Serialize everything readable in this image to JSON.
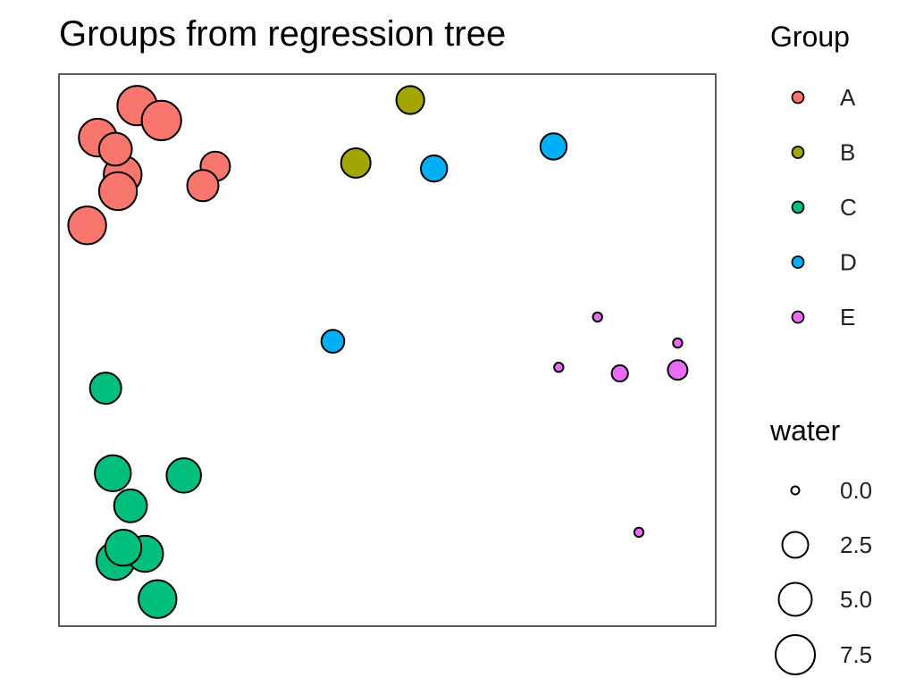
{
  "chart_data": {
    "type": "scatter",
    "title": "Groups from regression tree",
    "xlabel": "",
    "ylabel": "",
    "xlim": [
      0,
      100
    ],
    "ylim": [
      0,
      100
    ],
    "grid": false,
    "axes_ticks": false,
    "legend_position": "right",
    "color_legend": {
      "title": "Group",
      "entries": [
        {
          "label": "A",
          "color": "#F8766D"
        },
        {
          "label": "B",
          "color": "#A3A500"
        },
        {
          "label": "C",
          "color": "#00BF7D"
        },
        {
          "label": "D",
          "color": "#00B0F6"
        },
        {
          "label": "E",
          "color": "#E76BF3"
        }
      ]
    },
    "size_legend": {
      "title": "water",
      "values": [
        0.0,
        2.5,
        5.0,
        7.5
      ],
      "labels": [
        "0.0",
        "2.5",
        "5.0",
        "7.5"
      ]
    },
    "series": [
      {
        "group": "A",
        "points": [
          {
            "x": 11.9,
            "y": 94.3,
            "water": 9.5
          },
          {
            "x": 15.6,
            "y": 91.6,
            "water": 9.5
          },
          {
            "x": 5.9,
            "y": 88.5,
            "water": 9.0
          },
          {
            "x": 9.7,
            "y": 81.8,
            "water": 9.0
          },
          {
            "x": 8.6,
            "y": 86.4,
            "water": 7.5
          },
          {
            "x": 9.0,
            "y": 78.8,
            "water": 9.0
          },
          {
            "x": 23.8,
            "y": 83.3,
            "water": 6.5
          },
          {
            "x": 21.9,
            "y": 79.8,
            "water": 7.0
          },
          {
            "x": 4.3,
            "y": 72.6,
            "water": 9.0
          }
        ]
      },
      {
        "group": "B",
        "points": [
          {
            "x": 53.5,
            "y": 95.3,
            "water": 6.0
          },
          {
            "x": 45.2,
            "y": 83.9,
            "water": 6.5
          }
        ]
      },
      {
        "group": "D",
        "points": [
          {
            "x": 57.1,
            "y": 82.9,
            "water": 5.5
          },
          {
            "x": 75.3,
            "y": 86.9,
            "water": 5.5
          },
          {
            "x": 41.7,
            "y": 51.6,
            "water": 4.5
          }
        ]
      },
      {
        "group": "E",
        "points": [
          {
            "x": 82.0,
            "y": 56.0,
            "water": 0.4
          },
          {
            "x": 94.2,
            "y": 51.3,
            "water": 0.4
          },
          {
            "x": 76.1,
            "y": 46.9,
            "water": 0.4
          },
          {
            "x": 85.4,
            "y": 45.8,
            "water": 2.5
          },
          {
            "x": 94.2,
            "y": 46.4,
            "water": 3.5
          },
          {
            "x": 88.3,
            "y": 17.0,
            "water": 0.4
          }
        ]
      },
      {
        "group": "C",
        "points": [
          {
            "x": 7.1,
            "y": 43.1,
            "water": 7.0
          },
          {
            "x": 8.2,
            "y": 27.7,
            "water": 8.5
          },
          {
            "x": 19.0,
            "y": 27.3,
            "water": 8.0
          },
          {
            "x": 10.9,
            "y": 21.8,
            "water": 7.5
          },
          {
            "x": 8.6,
            "y": 11.8,
            "water": 9.0
          },
          {
            "x": 13.1,
            "y": 13.1,
            "water": 8.5
          },
          {
            "x": 9.8,
            "y": 14.2,
            "water": 8.5
          },
          {
            "x": 15.0,
            "y": 4.9,
            "water": 9.0
          }
        ]
      }
    ]
  }
}
